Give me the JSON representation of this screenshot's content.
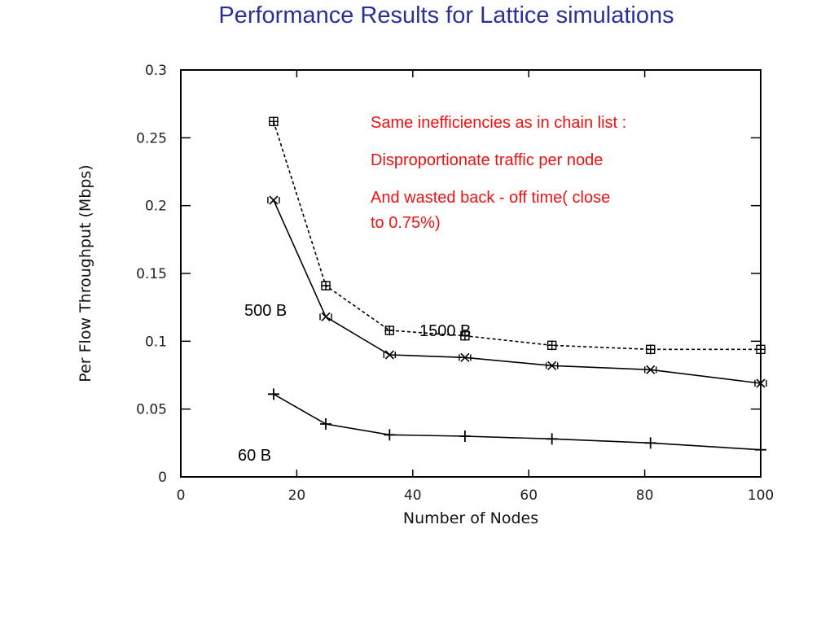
{
  "title": "Performance Results for Lattice simulations",
  "colors": {
    "title": "#2b2f96",
    "note": "#ee1111",
    "plot": "#000000"
  },
  "annotations": [
    "Same inefficiencies as in chain list :",
    "Disproportionate traffic per node",
    "And wasted back - off time( close",
    "to 0.75%)"
  ],
  "chart_data": {
    "type": "line",
    "title": "",
    "xlabel": "Number of Nodes",
    "ylabel": "Per Flow Throughput (Mbps)",
    "xlim": [
      0,
      100
    ],
    "ylim": [
      0,
      0.3
    ],
    "xticks": [
      "0",
      "20",
      "40",
      "60",
      "80",
      "100"
    ],
    "yticks": [
      "0",
      "0.05",
      "0.1",
      "0.15",
      "0.2",
      "0.25",
      "0.3"
    ],
    "grid": false,
    "x": [
      16,
      25,
      36,
      49,
      64,
      81,
      100
    ],
    "series": [
      {
        "name": "1500 B",
        "style": "dashed",
        "marker": "box-star",
        "values": [
          0.262,
          0.141,
          0.108,
          0.104,
          0.097,
          0.094,
          0.094
        ]
      },
      {
        "name": "500 B",
        "style": "solid",
        "marker": "x-box",
        "values": [
          0.204,
          0.118,
          0.09,
          0.088,
          0.082,
          0.079,
          0.069
        ]
      },
      {
        "name": "60 B",
        "style": "solid",
        "marker": "plus",
        "values": [
          0.061,
          0.039,
          0.031,
          0.03,
          0.028,
          0.025,
          0.02
        ]
      }
    ]
  }
}
